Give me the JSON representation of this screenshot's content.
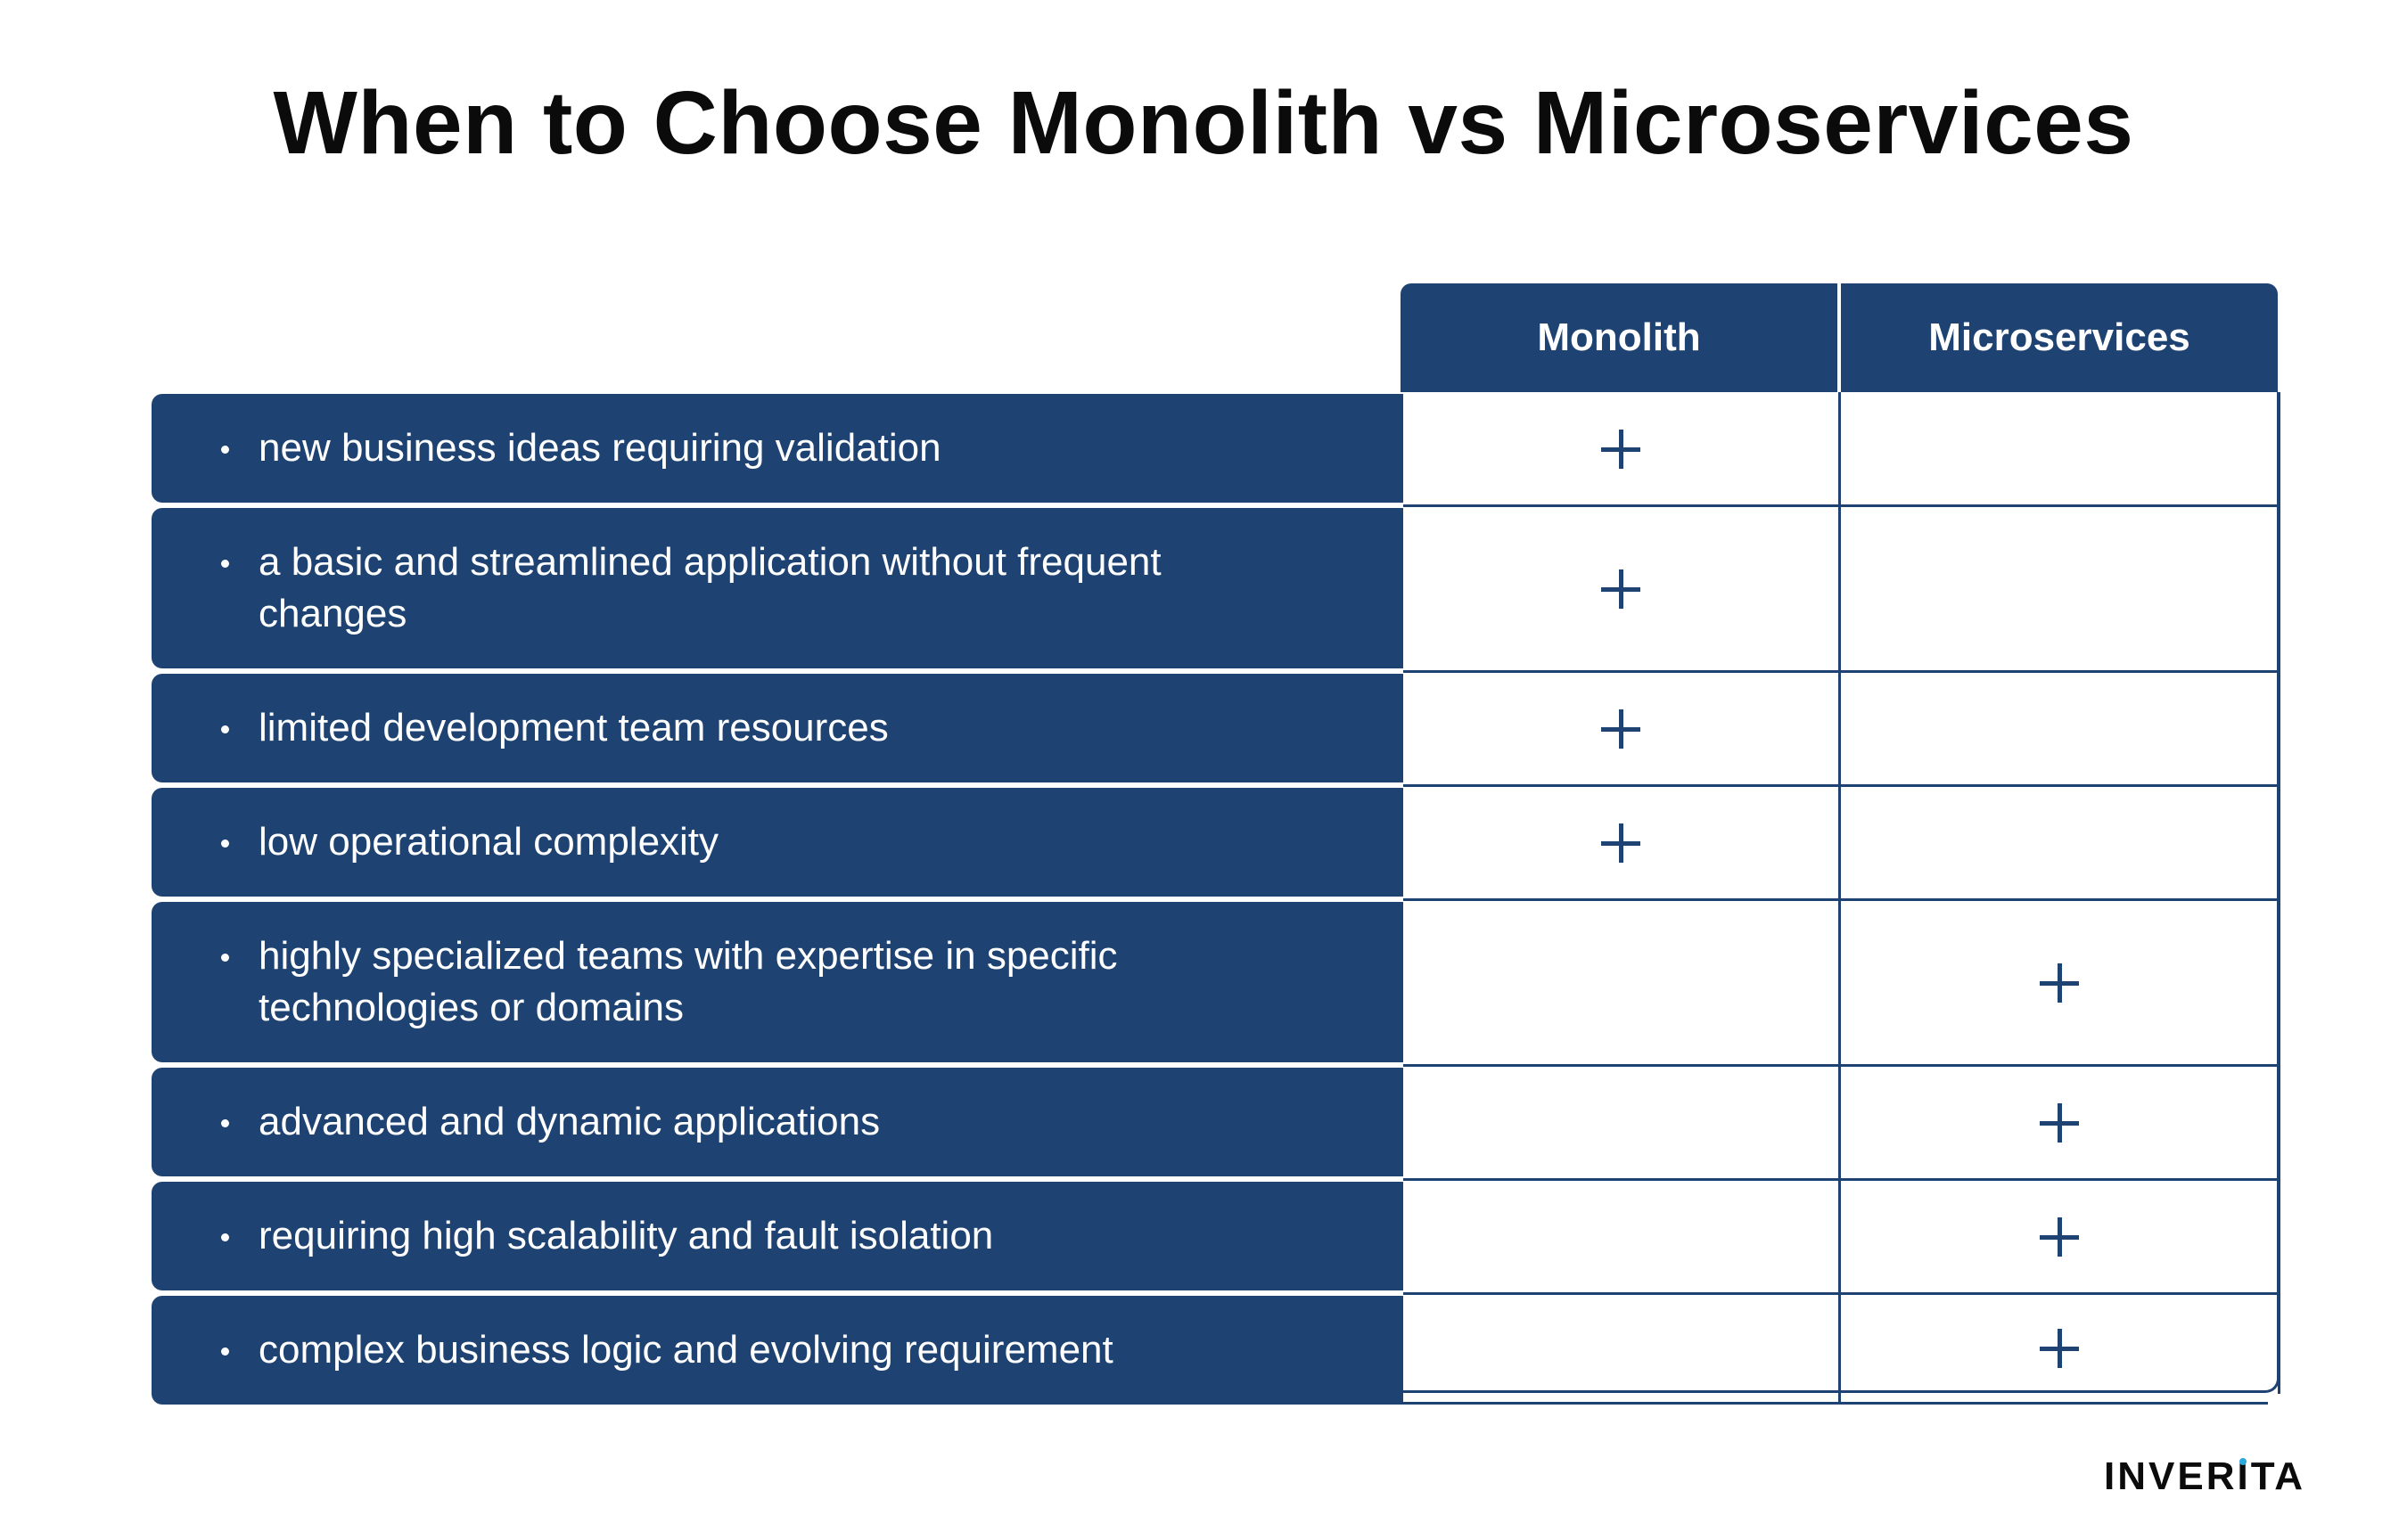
{
  "title": "When to Choose Monolith vs Microservices",
  "columns": [
    "Monolith",
    "Microservices"
  ],
  "rows": [
    {
      "label": "new business ideas requiring validation",
      "monolith": "+",
      "microservices": ""
    },
    {
      "label": " a basic and streamlined application without frequent changes",
      "monolith": "+",
      "microservices": ""
    },
    {
      "label": "limited development team resources",
      "monolith": "+",
      "microservices": ""
    },
    {
      "label": "low operational complexity",
      "monolith": "+",
      "microservices": ""
    },
    {
      "label": "highly specialized teams with expertise in specific technologies or domains",
      "monolith": "",
      "microservices": "+"
    },
    {
      "label": "advanced and dynamic applications",
      "monolith": "",
      "microservices": "+"
    },
    {
      "label": "requiring high scalability and fault isolation",
      "monolith": "",
      "microservices": "+"
    },
    {
      "label": "complex business logic and evolving requirement",
      "monolith": "",
      "microservices": "+"
    }
  ],
  "logo": "INVERITA",
  "colors": {
    "navy": "#1e4372",
    "accent_dot": "#2aa8e0"
  }
}
